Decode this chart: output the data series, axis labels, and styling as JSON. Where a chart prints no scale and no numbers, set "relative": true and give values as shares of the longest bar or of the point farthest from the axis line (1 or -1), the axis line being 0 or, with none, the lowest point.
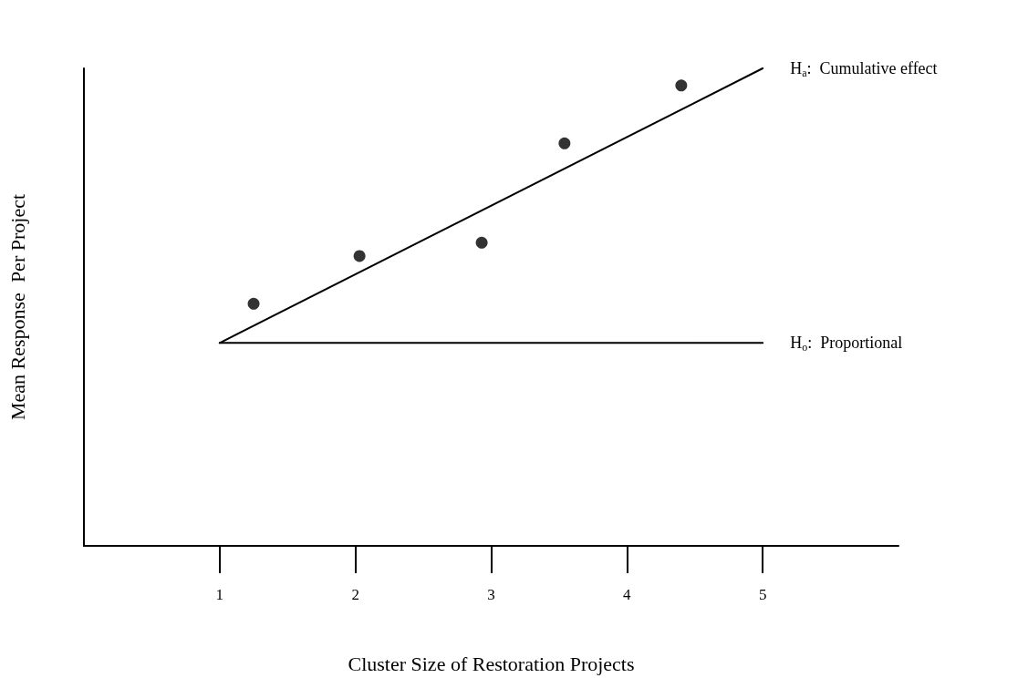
{
  "chart_data": {
    "type": "scatter",
    "relative": true,
    "xlabel": "Cluster Size of Restoration Projects",
    "ylabel": "Mean Response  Per Project",
    "xlim": [
      0,
      6
    ],
    "xticks": [
      1,
      2,
      3,
      4,
      5
    ],
    "grid": false,
    "legend": false,
    "series": [
      {
        "marker": "circle",
        "color": "#000000",
        "x": [
          1.25,
          2.03,
          2.93,
          3.54,
          4.4
        ],
        "values": [
          0.507,
          0.607,
          0.635,
          0.843,
          0.964
        ]
      },
      {
        "type": "line",
        "marker": "none",
        "line_style": "solid",
        "name": "H$_{a}$:  Cumulative effect",
        "color": "#000000",
        "x": [
          1,
          5
        ],
        "values": [
          0.425,
          1.0
        ]
      },
      {
        "type": "line",
        "marker": "none",
        "line_style": "solid",
        "name": "H$_{o}$:  Proportional",
        "color": "#000000",
        "x": [
          1,
          5
        ],
        "values": [
          0.425,
          0.425
        ]
      }
    ]
  }
}
